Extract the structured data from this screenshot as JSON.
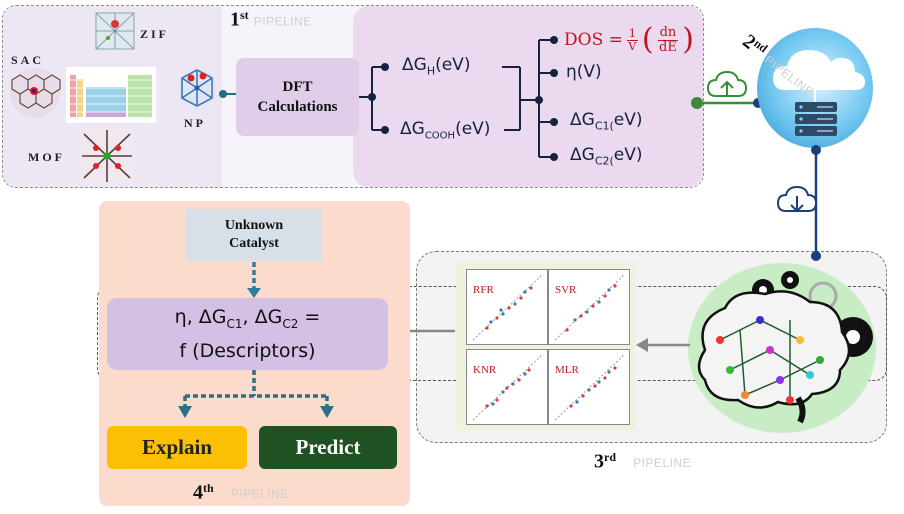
{
  "pipeline1": {
    "number": "1",
    "suffix": "st",
    "word": "PIPELINE",
    "materials": {
      "sac": "SAC",
      "zif": "ZIF",
      "np": "NP",
      "mof": "MOF"
    },
    "dft_line1": "DFT",
    "dft_line2": "Calculations",
    "dg_h": "ΔG",
    "dg_h_sub": "H",
    "dg_h_unit": "(eV)",
    "dg_cooh": "ΔG",
    "dg_cooh_sub": "COOH",
    "dg_cooh_unit": "(eV)",
    "dos_text": "DOS =",
    "dos_frac_num": "1",
    "dos_frac_den": "V",
    "dos_inner_num": "dn",
    "dos_inner_den": "dE",
    "eta": "η(V)",
    "dg_c1": "ΔG",
    "dg_c1_sub": "C1(",
    "dg_c1_unit": "eV)",
    "dg_c2": "ΔG",
    "dg_c2_sub": "C2(",
    "dg_c2_unit": "eV)"
  },
  "pipeline2": {
    "number": "2",
    "suffix": "nd",
    "word": "PIPELINE"
  },
  "pipeline3": {
    "number": "3",
    "suffix": "rd",
    "word": "PIPELINE",
    "models": [
      "RFR",
      "SVR",
      "KNR",
      "MLR"
    ]
  },
  "pipeline4": {
    "number": "4",
    "suffix": "th",
    "word": "PIPELINE",
    "unknown_line1": "Unknown",
    "unknown_line2": "Catalyst",
    "formula_line1": "η, ΔG",
    "formula_sub1": "C1",
    "formula_mid": ", ΔG",
    "formula_sub2": "C2",
    "formula_end": " =",
    "formula_line2": "f (Descriptors)",
    "explain": "Explain",
    "predict": "Predict"
  },
  "colors": {
    "connector": "#16213e",
    "upload_green": "#3a8c3a",
    "dos_red": "#c0151b",
    "explain_bg": "#fbbf04",
    "predict_bg": "#1e5223",
    "formula_bg": "#d4c0e4",
    "pipeline4_bg": "#fadbcc"
  }
}
